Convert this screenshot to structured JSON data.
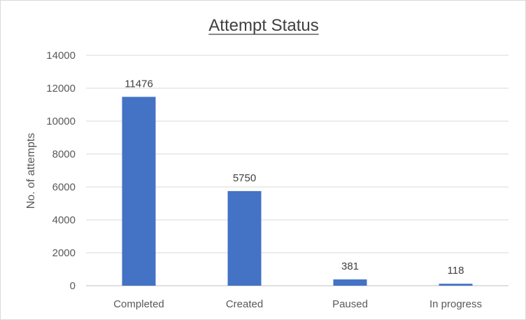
{
  "chart_data": {
    "type": "bar",
    "title": "Attempt Status",
    "xlabel": "",
    "ylabel": "No. of attempts",
    "categories": [
      "Completed",
      "Created",
      "Paused",
      "In progress"
    ],
    "values": [
      11476,
      5750,
      381,
      118
    ],
    "ylim": [
      0,
      14000
    ],
    "yticks": [
      0,
      2000,
      4000,
      6000,
      8000,
      10000,
      12000,
      14000
    ],
    "grid": true,
    "legend": "none",
    "bar_color": "#4472C4"
  }
}
